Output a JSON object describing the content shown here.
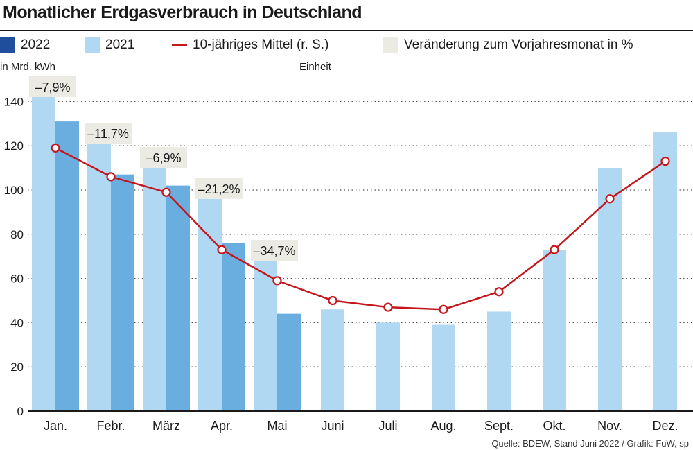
{
  "chart_data": {
    "type": "bar",
    "title": "Monatlicher Erdgasverbrauch in Deutschland",
    "ylabel_left": "in Mrd. kWh",
    "ylabel_right": "Einheit",
    "categories": [
      "Jan.",
      "Febr.",
      "März",
      "Apr.",
      "Mai",
      "Juni",
      "Juli",
      "Aug.",
      "Sept.",
      "Okt.",
      "Nov.",
      "Dez."
    ],
    "series": [
      {
        "name": "2021",
        "type": "bar",
        "color": "#b0d8f2",
        "values": [
          142,
          121,
          110,
          96,
          68,
          46,
          40,
          39,
          45,
          73,
          110,
          126
        ]
      },
      {
        "name": "2022",
        "type": "bar",
        "color": "#6aaee0",
        "values": [
          131,
          107,
          102,
          76,
          44,
          null,
          null,
          null,
          null,
          null,
          null,
          null
        ]
      },
      {
        "name": "10-jähriges Mittel (r. S.)",
        "type": "line",
        "color": "#c4161c",
        "values": [
          119,
          106,
          99,
          73,
          59,
          50,
          47,
          46,
          54,
          73,
          96,
          113
        ]
      }
    ],
    "changes": [
      "–7,9%",
      "–11,7%",
      "–6,9%",
      "–21,2%",
      "–34,7%",
      null,
      null,
      null,
      null,
      null,
      null,
      null
    ],
    "yticks": [
      0,
      20,
      40,
      60,
      80,
      100,
      120,
      140
    ],
    "ylim": [
      0,
      150
    ],
    "grid": true
  },
  "legend": [
    {
      "label": "2022",
      "kind": "box",
      "color": "#1f4e9c"
    },
    {
      "label": "2021",
      "kind": "box",
      "color": "#b0d8f2"
    },
    {
      "label": "10-jähriges Mittel (r. S.)",
      "kind": "line",
      "color": "#c4161c"
    },
    {
      "label": "Veränderung zum Vorjahresmonat in %",
      "kind": "box",
      "color": "#ebebe3"
    }
  ],
  "source": "Quelle:  BDEW, Stand Juni 2022 / Grafik: FuW, sp"
}
